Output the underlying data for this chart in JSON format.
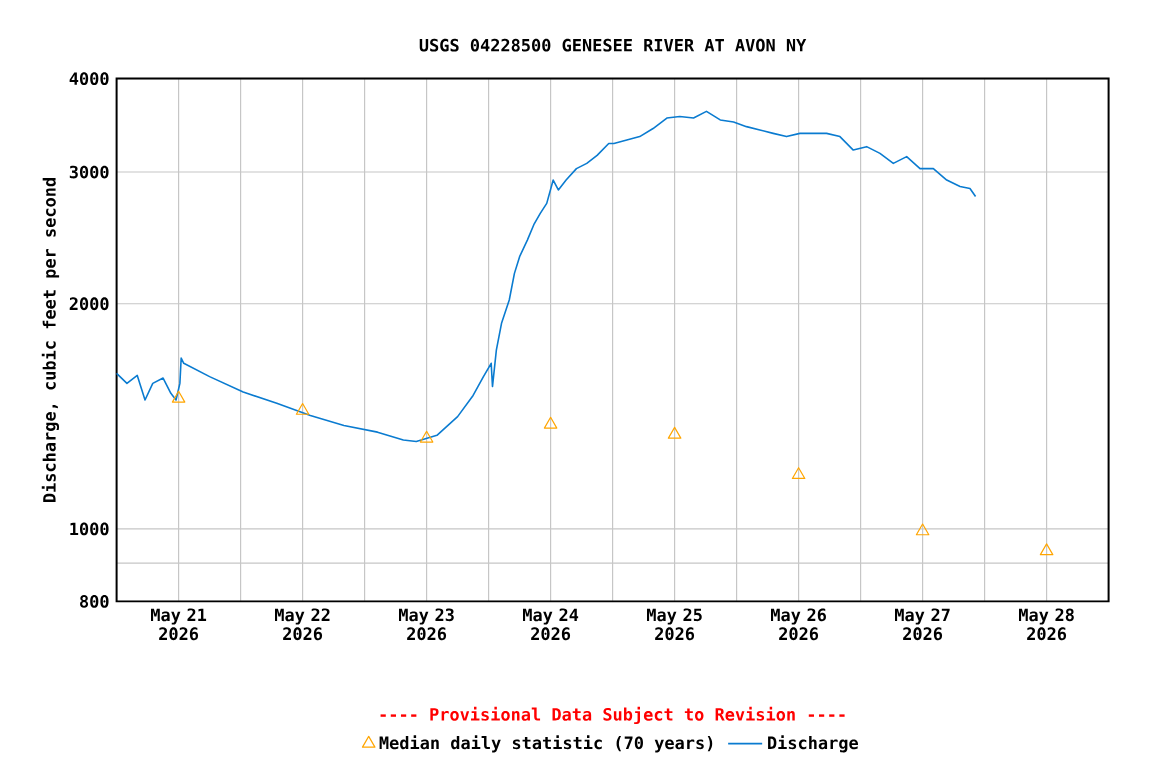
{
  "chart_data": {
    "type": "line",
    "title": "USGS 04228500 GENESEE RIVER AT AVON NY",
    "ylabel": "Discharge, cubic feet per second",
    "annotations": [
      "---- Provisional Data Subject to Revision ----"
    ],
    "log": true,
    "grid": true,
    "legend": "bottom",
    "xlim": [
      "2026-05-20T12:00",
      "2026-05-28T12:00"
    ],
    "xticks": [
      {
        "value": "2026-05-21",
        "label": "May 21 2026"
      },
      {
        "value": "2026-05-21T12:00",
        "label": null
      },
      {
        "value": "2026-05-22",
        "label": "May 22 2026"
      },
      {
        "value": "2026-05-22T12:00",
        "label": null
      },
      {
        "value": "2026-05-23",
        "label": "May 23 2026"
      },
      {
        "value": "2026-05-23T12:00",
        "label": null
      },
      {
        "value": "2026-05-24",
        "label": "May 24 2026"
      },
      {
        "value": "2026-05-24T12:00",
        "label": null
      },
      {
        "value": "2026-05-25",
        "label": "May 25 2026"
      },
      {
        "value": "2026-05-25T12:00",
        "label": null
      },
      {
        "value": "2026-05-26",
        "label": "May 26 2026"
      },
      {
        "value": "2026-05-26T12:00",
        "label": null
      },
      {
        "value": "2026-05-27",
        "label": "May 27 2026"
      },
      {
        "value": "2026-05-27T12:00",
        "label": null
      },
      {
        "value": "2026-05-28",
        "label": "May 28 2026"
      }
    ],
    "ylim": [
      800,
      4000
    ],
    "yticks": [
      800,
      {
        "value": 900,
        "label": null
      },
      1000,
      2000,
      3000,
      4000
    ],
    "series": [
      {
        "name": "Median daily statistic (70 years)",
        "type": "scatter",
        "marker": "triangle",
        "color": "#ffa500",
        "x": [
          "2026-05-21",
          "2026-05-22",
          "2026-05-23",
          "2026-05-24",
          "2026-05-25",
          "2026-05-26",
          "2026-05-27",
          "2026-05-28"
        ],
        "values": [
          1494,
          1439,
          1321,
          1379,
          1337,
          1181,
          993,
          934
        ]
      },
      {
        "name": "Discharge",
        "color": "#0a7bd0",
        "x": [
          "2026-05-20T12:00",
          "2026-05-20T14:00",
          "2026-05-20T16:00",
          "2026-05-20T17:30",
          "2026-05-20T19:00",
          "2026-05-20T21:00",
          "2026-05-20T22:30",
          "2026-05-20T23:30",
          "2026-05-21T00:15",
          "2026-05-21T00:30",
          "2026-05-21T01:00",
          "2026-05-21T06:00",
          "2026-05-21T12:30",
          "2026-05-21T19:00",
          "2026-05-22T01:30",
          "2026-05-22T08:00",
          "2026-05-22T14:30",
          "2026-05-22T19:30",
          "2026-05-22T22:00",
          "2026-05-23T02:00",
          "2026-05-23T06:00",
          "2026-05-23T09:00",
          "2026-05-23T11:00",
          "2026-05-23T12:30",
          "2026-05-23T12:45",
          "2026-05-23T13:30",
          "2026-05-23T14:30",
          "2026-05-23T16:00",
          "2026-05-23T17:00",
          "2026-05-23T18:00",
          "2026-05-23T19:30",
          "2026-05-23T20:45",
          "2026-05-23T22:00",
          "2026-05-23T23:15",
          "2026-05-24T00:30",
          "2026-05-24T01:30",
          "2026-05-24T03:00",
          "2026-05-24T05:00",
          "2026-05-24T07:00",
          "2026-05-24T09:00",
          "2026-05-24T11:15",
          "2026-05-24T12:15",
          "2026-05-24T14:45",
          "2026-05-24T17:15",
          "2026-05-24T19:50",
          "2026-05-24T22:30",
          "2026-05-25T01:00",
          "2026-05-25T03:40",
          "2026-05-25T06:10",
          "2026-05-25T08:50",
          "2026-05-25T11:25",
          "2026-05-25T13:55",
          "2026-05-25T16:30",
          "2026-05-25T19:05",
          "2026-05-25T21:40",
          "2026-05-26T00:15",
          "2026-05-26T02:50",
          "2026-05-26T05:25",
          "2026-05-26T08:00",
          "2026-05-26T10:35",
          "2026-05-26T13:10",
          "2026-05-26T15:45",
          "2026-05-26T18:20",
          "2026-05-26T20:55",
          "2026-05-26T23:30",
          "2026-05-27T02:05",
          "2026-05-27T04:40",
          "2026-05-27T07:15",
          "2026-05-27T09:10",
          "2026-05-27T10:15"
        ],
        "values": [
          1614,
          1565,
          1604,
          1487,
          1565,
          1591,
          1518,
          1487,
          1565,
          1692,
          1665,
          1598,
          1524,
          1472,
          1418,
          1375,
          1347,
          1315,
          1309,
          1334,
          1413,
          1508,
          1598,
          1665,
          1550,
          1734,
          1883,
          2023,
          2196,
          2312,
          2433,
          2551,
          2641,
          2724,
          2927,
          2839,
          2927,
          3032,
          3081,
          3158,
          3276,
          3276,
          3310,
          3346,
          3430,
          3543,
          3559,
          3543,
          3616,
          3522,
          3500,
          3450,
          3415,
          3379,
          3346,
          3379,
          3379,
          3379,
          3346,
          3210,
          3244,
          3177,
          3081,
          3146,
          3032,
          3032,
          2927,
          2869,
          2852,
          2782
        ]
      }
    ]
  }
}
